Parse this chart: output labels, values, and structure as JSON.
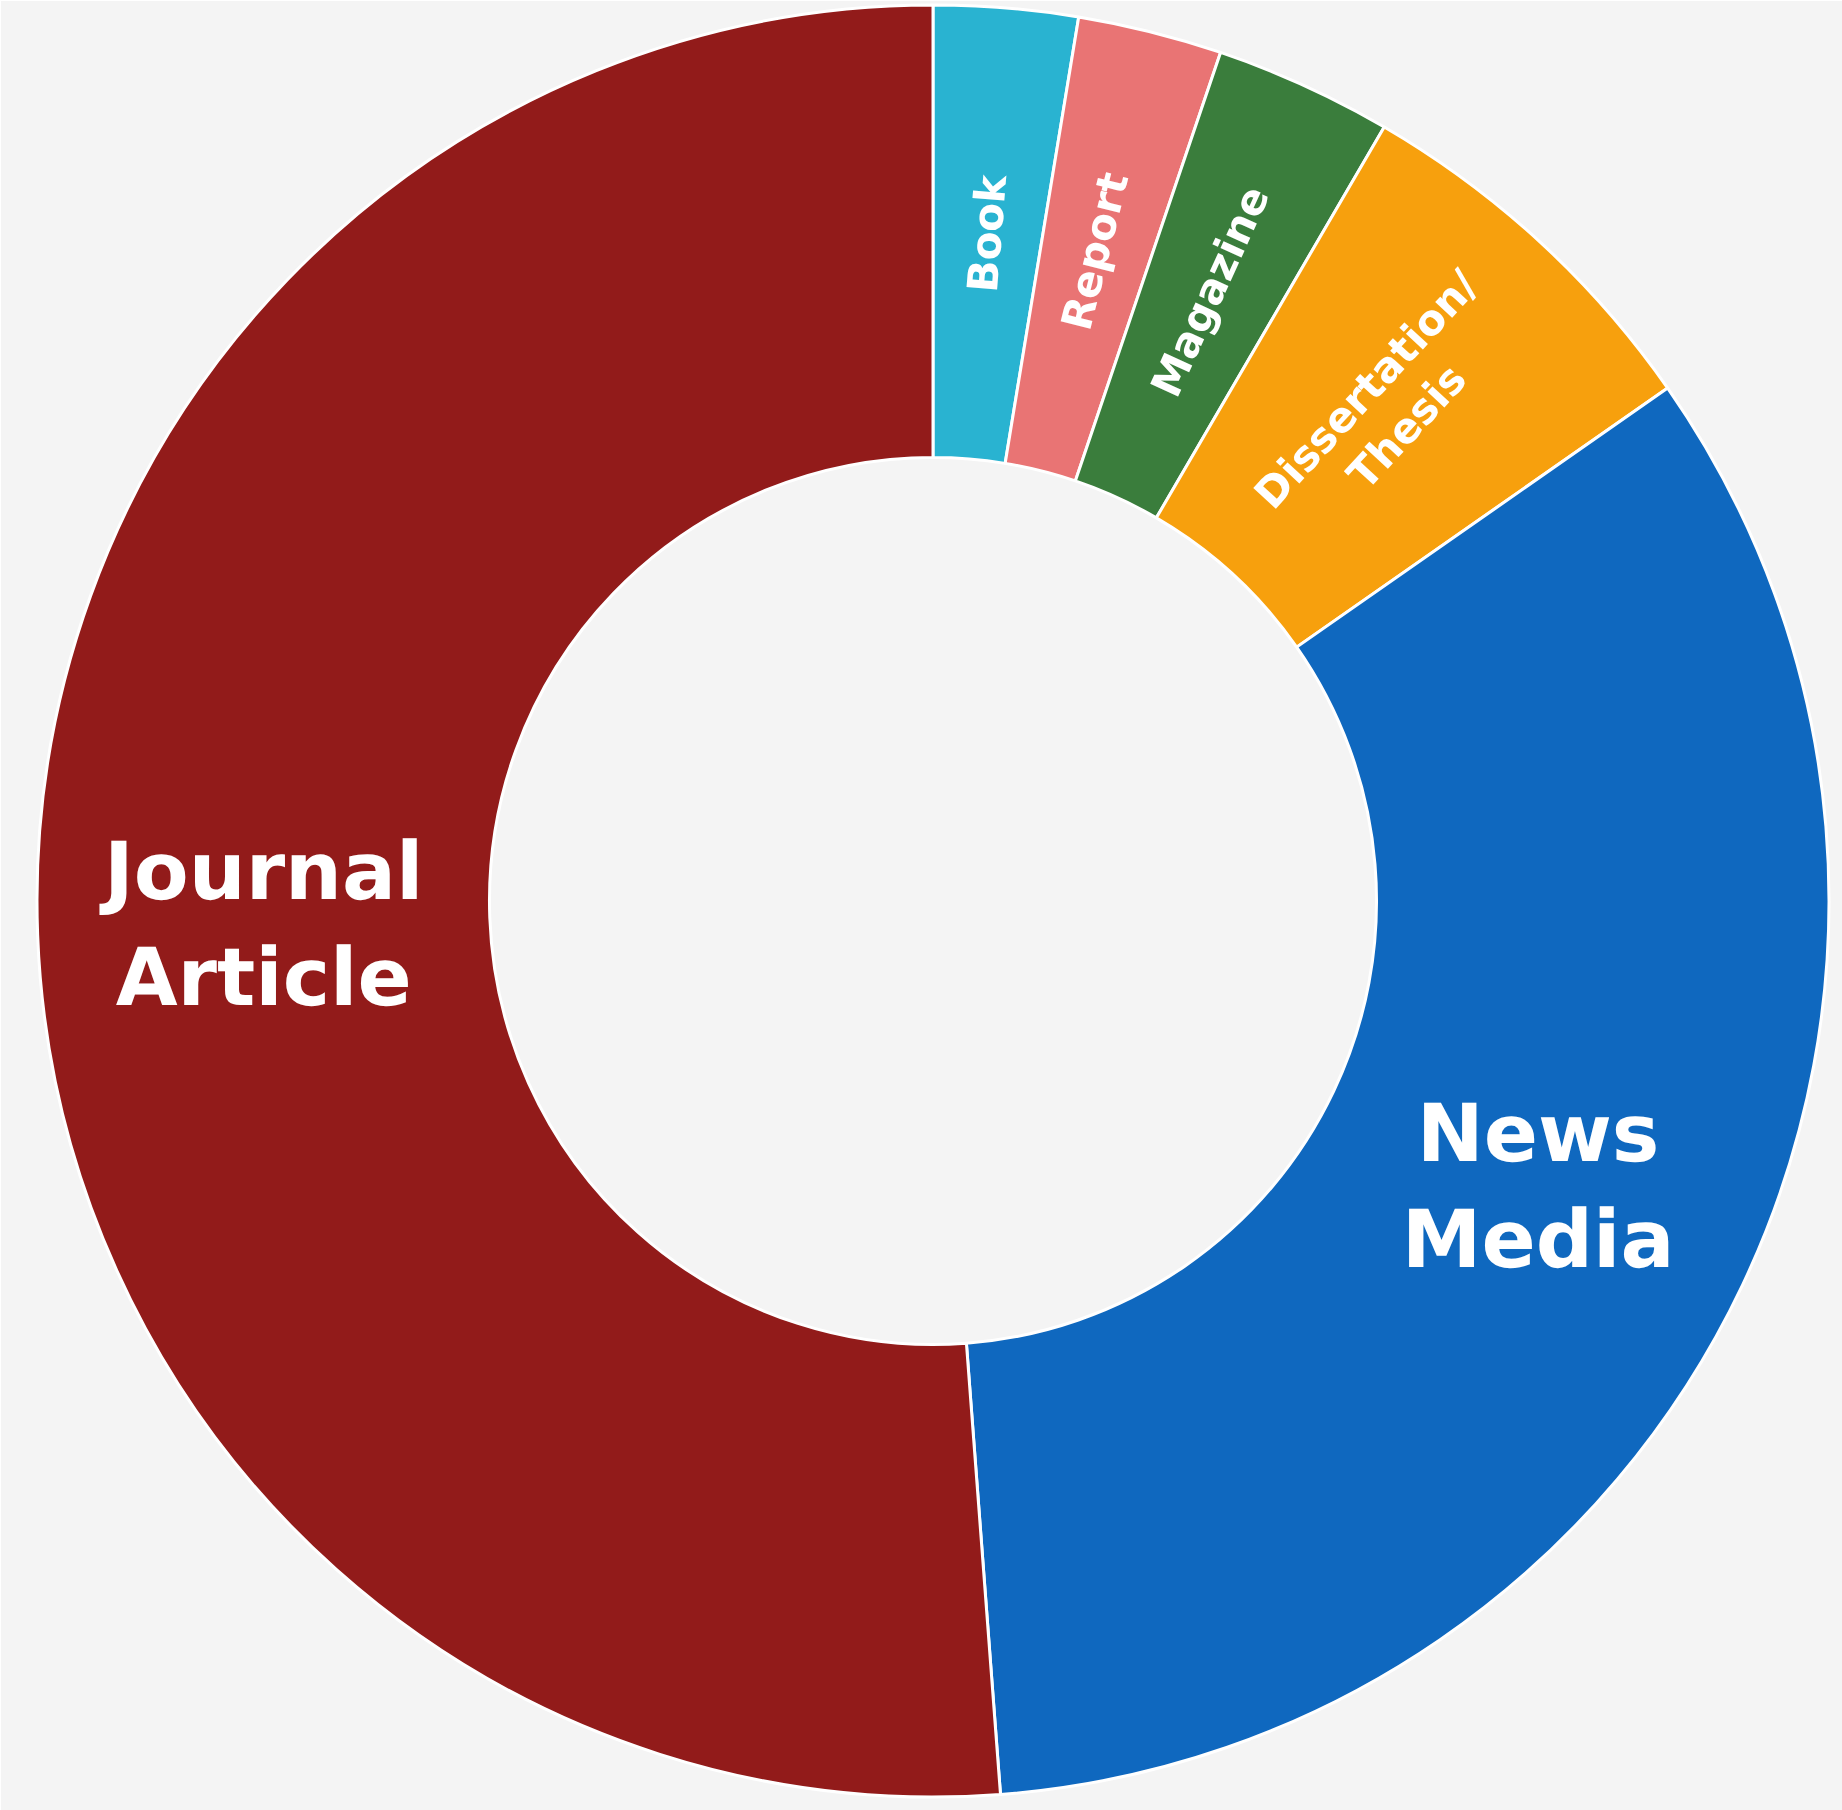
{
  "chart_data": {
    "type": "donut",
    "categories": [
      "Book",
      "Report",
      "Magazine",
      "Dissertation/ Thesis",
      "News Media",
      "Journal Article"
    ],
    "values": [
      2.6,
      2.6,
      3.2,
      6.9,
      33.5,
      51.2
    ],
    "colors": [
      "#29b3d1",
      "#e97474",
      "#3a7d3c",
      "#f7a00d",
      "#0f68bf",
      "#921b1a"
    ],
    "legend": false
  }
}
